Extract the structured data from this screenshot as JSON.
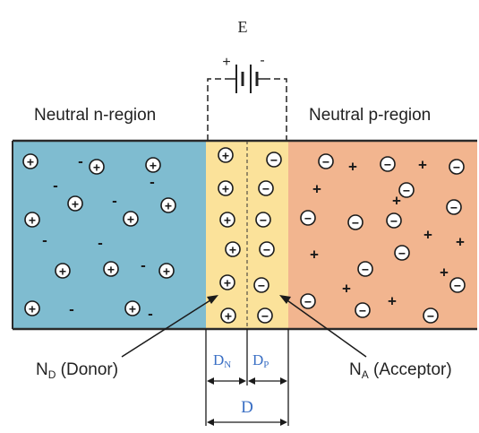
{
  "labels": {
    "battery": "E",
    "battery_plus": "+",
    "battery_minus": "-",
    "n_region": "Neutral n-region",
    "p_region": "Neutral p-region",
    "donor_main": "N",
    "donor_sub": "D",
    "donor_rest": " (Donor)",
    "acceptor_main": "N",
    "acceptor_sub": "A",
    "acceptor_rest": " (Acceptor)",
    "dn_main": "D",
    "dn_sub": "N",
    "dp_main": "D",
    "dp_sub": "P",
    "d_total": "D"
  },
  "colors": {
    "n_region": "#7fbcd0",
    "depletion": "#fbe29a",
    "p_region": "#f2b58f",
    "dimension_text": "#3a6fc4"
  },
  "symbols": {
    "donor_ion": "⊕",
    "acceptor_ion": "⊖",
    "electron": "-",
    "hole": "+"
  }
}
